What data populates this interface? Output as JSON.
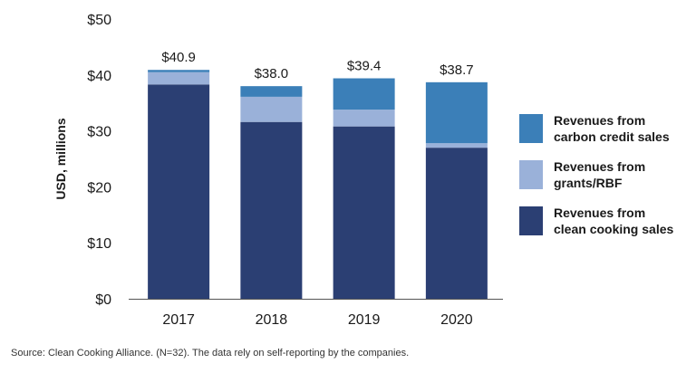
{
  "chart_data": {
    "type": "bar",
    "stacked": true,
    "categories": [
      "2017",
      "2018",
      "2019",
      "2020"
    ],
    "series": [
      {
        "name": "Revenues from clean cooking sales",
        "color": "#2b3f73",
        "values": [
          38.3,
          31.6,
          30.8,
          27.0
        ]
      },
      {
        "name": "Revenues from grants/RBF",
        "color": "#9ab1d9",
        "values": [
          2.2,
          4.5,
          3.0,
          0.8
        ]
      },
      {
        "name": "Revenues from carbon credit sales",
        "color": "#3b7fb8",
        "values": [
          0.4,
          1.9,
          5.6,
          10.9
        ]
      }
    ],
    "totals": [
      "$40.9",
      "$38.0",
      "$39.4",
      "$38.7"
    ],
    "y_ticks": [
      "$0",
      "$10",
      "$20",
      "$30",
      "$40",
      "$50"
    ],
    "ylabel": "USD, millions",
    "xlabel": "",
    "title": "",
    "ylim": [
      0,
      50
    ],
    "grid": false,
    "legend_position": "right"
  },
  "legend": {
    "items": [
      {
        "label": "Revenues from\ncarbon credit sales",
        "color": "#3b7fb8"
      },
      {
        "label": "Revenues from\ngrants/RBF",
        "color": "#9ab1d9"
      },
      {
        "label": "Revenues from\nclean cooking sales",
        "color": "#2b3f73"
      }
    ]
  },
  "source": "Source: Clean Cooking Alliance. (N=32). The data rely on self-reporting by the companies."
}
